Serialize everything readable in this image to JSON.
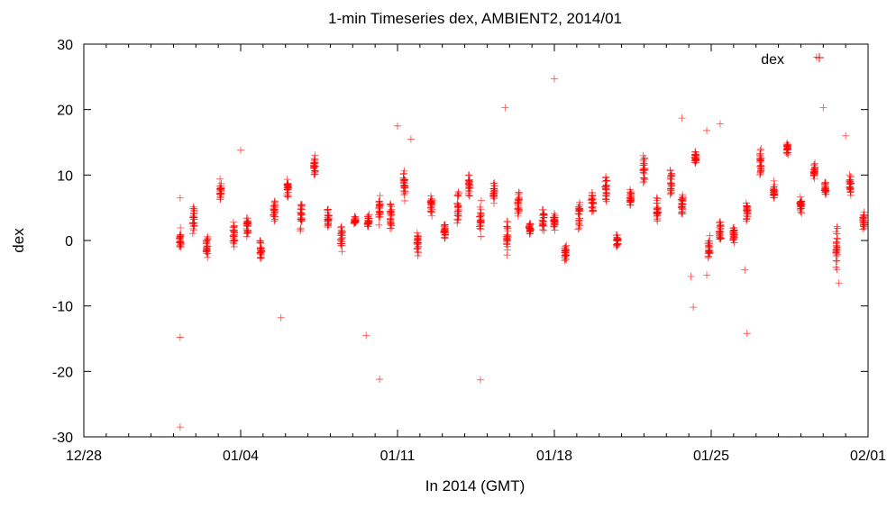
{
  "chart_data": {
    "type": "scatter",
    "title": "1-min Timeseries dex, AMBIENT2, 2014/01",
    "xlabel": "In 2014 (GMT)",
    "ylabel": "dex",
    "ylim": [
      -30,
      30
    ],
    "xlim": [
      0,
      35
    ],
    "x_unit": "days since 12/28",
    "x_ticks": [
      {
        "pos": 0,
        "label": "12/28"
      },
      {
        "pos": 7,
        "label": "01/04"
      },
      {
        "pos": 14,
        "label": "01/11"
      },
      {
        "pos": 21,
        "label": "01/18"
      },
      {
        "pos": 28,
        "label": "01/25"
      },
      {
        "pos": 35,
        "label": "02/01"
      }
    ],
    "y_ticks": [
      -30,
      -20,
      -10,
      0,
      10,
      20,
      30
    ],
    "legend_position": "top-right",
    "colors": {
      "series": "#ff0000"
    },
    "series": [
      {
        "name": "dex",
        "marker": "plus",
        "clusters": [
          {
            "x": 4.3,
            "center": 0.2,
            "spread": 2.5
          },
          {
            "x": 4.9,
            "center": 3.5,
            "spread": 3.0
          },
          {
            "x": 5.5,
            "center": -0.8,
            "spread": 2.5
          },
          {
            "x": 6.1,
            "center": 7.8,
            "spread": 2.0
          },
          {
            "x": 6.7,
            "center": 1.0,
            "spread": 2.5
          },
          {
            "x": 7.3,
            "center": 2.2,
            "spread": 2.5
          },
          {
            "x": 7.9,
            "center": -1.5,
            "spread": 2.5
          },
          {
            "x": 8.5,
            "center": 4.5,
            "spread": 2.2
          },
          {
            "x": 9.1,
            "center": 8.0,
            "spread": 2.0
          },
          {
            "x": 9.7,
            "center": 4.0,
            "spread": 3.0
          },
          {
            "x": 10.3,
            "center": 11.5,
            "spread": 2.0
          },
          {
            "x": 10.9,
            "center": 3.5,
            "spread": 2.0
          },
          {
            "x": 11.5,
            "center": 0.5,
            "spread": 3.0
          },
          {
            "x": 12.1,
            "center": 3.0,
            "spread": 1.0
          },
          {
            "x": 12.7,
            "center": 3.0,
            "spread": 1.5
          },
          {
            "x": 13.2,
            "center": 5.0,
            "spread": 3.0
          },
          {
            "x": 13.7,
            "center": 3.5,
            "spread": 3.5
          },
          {
            "x": 14.3,
            "center": 8.5,
            "spread": 2.8
          },
          {
            "x": 14.9,
            "center": -0.5,
            "spread": 3.5
          },
          {
            "x": 15.5,
            "center": 5.5,
            "spread": 2.0
          },
          {
            "x": 16.1,
            "center": 1.5,
            "spread": 2.0
          },
          {
            "x": 16.7,
            "center": 5.0,
            "spread": 3.5
          },
          {
            "x": 17.2,
            "center": 8.5,
            "spread": 2.5
          },
          {
            "x": 17.7,
            "center": 3.0,
            "spread": 3.5
          },
          {
            "x": 18.3,
            "center": 7.5,
            "spread": 2.5
          },
          {
            "x": 18.9,
            "center": 0.5,
            "spread": 3.0
          },
          {
            "x": 19.4,
            "center": 5.5,
            "spread": 3.5
          },
          {
            "x": 19.9,
            "center": 2.0,
            "spread": 1.5
          },
          {
            "x": 20.5,
            "center": 3.0,
            "spread": 3.0
          },
          {
            "x": 21.0,
            "center": 3.0,
            "spread": 1.5
          },
          {
            "x": 21.5,
            "center": -2.0,
            "spread": 2.0
          },
          {
            "x": 22.1,
            "center": 4.0,
            "spread": 3.5
          },
          {
            "x": 22.7,
            "center": 6.0,
            "spread": 2.0
          },
          {
            "x": 23.3,
            "center": 8.0,
            "spread": 3.0
          },
          {
            "x": 23.8,
            "center": 0.0,
            "spread": 1.5
          },
          {
            "x": 24.4,
            "center": 6.5,
            "spread": 1.8
          },
          {
            "x": 25.0,
            "center": 11.0,
            "spread": 3.5
          },
          {
            "x": 25.6,
            "center": 4.5,
            "spread": 3.0
          },
          {
            "x": 26.2,
            "center": 9.0,
            "spread": 3.5
          },
          {
            "x": 26.7,
            "center": 5.5,
            "spread": 2.0
          },
          {
            "x": 27.3,
            "center": 12.5,
            "spread": 1.5
          },
          {
            "x": 27.9,
            "center": -1.0,
            "spread": 2.8
          },
          {
            "x": 28.4,
            "center": 1.5,
            "spread": 2.5
          },
          {
            "x": 29.0,
            "center": 1.0,
            "spread": 1.8
          },
          {
            "x": 29.6,
            "center": 4.5,
            "spread": 2.5
          },
          {
            "x": 30.2,
            "center": 12.0,
            "spread": 3.0
          },
          {
            "x": 30.8,
            "center": 7.5,
            "spread": 2.0
          },
          {
            "x": 31.4,
            "center": 14.0,
            "spread": 1.2
          },
          {
            "x": 32.0,
            "center": 5.5,
            "spread": 1.8
          },
          {
            "x": 32.6,
            "center": 10.5,
            "spread": 1.5
          },
          {
            "x": 33.1,
            "center": 8.0,
            "spread": 1.5
          },
          {
            "x": 33.6,
            "center": -1.0,
            "spread": 4.0
          },
          {
            "x": 34.2,
            "center": 8.5,
            "spread": 2.5
          },
          {
            "x": 34.8,
            "center": 3.0,
            "spread": 2.0
          }
        ],
        "outliers": [
          {
            "x": 4.3,
            "y": -28.5
          },
          {
            "x": 4.3,
            "y": -14.8
          },
          {
            "x": 4.3,
            "y": 6.5
          },
          {
            "x": 7.0,
            "y": 13.8
          },
          {
            "x": 8.8,
            "y": -11.8
          },
          {
            "x": 12.6,
            "y": -14.5
          },
          {
            "x": 13.2,
            "y": -21.2
          },
          {
            "x": 14.0,
            "y": 17.5
          },
          {
            "x": 14.6,
            "y": 15.5
          },
          {
            "x": 17.7,
            "y": -21.3
          },
          {
            "x": 18.8,
            "y": 20.3
          },
          {
            "x": 21.0,
            "y": 24.7
          },
          {
            "x": 26.7,
            "y": 18.7
          },
          {
            "x": 27.2,
            "y": -10.2
          },
          {
            "x": 27.1,
            "y": -5.5
          },
          {
            "x": 27.8,
            "y": 16.8
          },
          {
            "x": 27.8,
            "y": -5.3
          },
          {
            "x": 28.4,
            "y": 17.8
          },
          {
            "x": 29.6,
            "y": -14.2
          },
          {
            "x": 29.5,
            "y": -4.5
          },
          {
            "x": 32.7,
            "y": 28.0
          },
          {
            "x": 33.0,
            "y": 20.3
          },
          {
            "x": 34.0,
            "y": 16.0
          },
          {
            "x": 33.7,
            "y": -6.5
          }
        ]
      }
    ]
  }
}
